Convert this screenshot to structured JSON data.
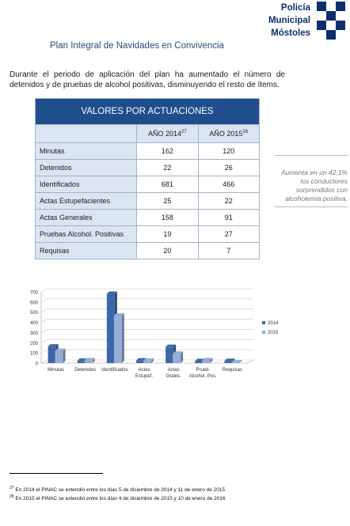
{
  "header": {
    "logo_lines": [
      "Policía",
      "Municipal",
      "Móstoles"
    ]
  },
  "page_title": "Plan Integral de Navidades en Convivencia",
  "intro": "Durante el periodo de aplicación del plan ha aumentado el número de detenidos y de pruebas de alcohol positivas, disminuyendo el resto de ítems.",
  "table": {
    "title": "VALORES POR ACTUACIONES",
    "col_2014": "AÑO 2014",
    "col_2014_note": "27",
    "col_2015": "AÑO 2015",
    "col_2015_note": "28",
    "rows": [
      {
        "label": "Minutas",
        "v2014": "162",
        "v2015": "120"
      },
      {
        "label": "Detenidos",
        "v2014": "22",
        "v2015": "26"
      },
      {
        "label": "Identificados",
        "v2014": "681",
        "v2015": "466"
      },
      {
        "label": "Actas Estupefacientes",
        "v2014": "25",
        "v2015": "22"
      },
      {
        "label": "Actas Generales",
        "v2014": "158",
        "v2015": "91"
      },
      {
        "label": "Pruebas Alcohol. Positivas",
        "v2014": "19",
        "v2015": "27"
      },
      {
        "label": "Requisas",
        "v2014": "20",
        "v2015": "7"
      }
    ]
  },
  "callout": "Aumenta en un 42,1% los conductores sorprendidos con alcoholemia positiva.",
  "chart_data": {
    "type": "bar",
    "categories": [
      "Minutas",
      "Detenidos",
      "Identificados",
      "Actas Estupef.",
      "Actas Grales.",
      "Prueb. Alcohol. Pos.",
      "Requisas"
    ],
    "series": [
      {
        "name": "2014",
        "values": [
          162,
          22,
          681,
          25,
          158,
          19,
          20
        ],
        "color": "#3c67a8"
      },
      {
        "name": "2015",
        "values": [
          120,
          26,
          466,
          22,
          91,
          27,
          7
        ],
        "color": "#94acd6"
      }
    ],
    "ylim": [
      0,
      700
    ],
    "yticks": [
      0,
      100,
      200,
      300,
      400,
      500,
      600,
      700
    ],
    "legend": "right",
    "grid": true
  },
  "footnotes": [
    {
      "num": "27",
      "text": "En 2014 el PINAC se extendió entre los días 5 de diciembre de 2014 y 11 de enero de 2015"
    },
    {
      "num": "28",
      "text": "En 2015 el PINAC se extendió entre los días 4 de diciembre de 2015 y 10 de enero de 2016"
    }
  ]
}
